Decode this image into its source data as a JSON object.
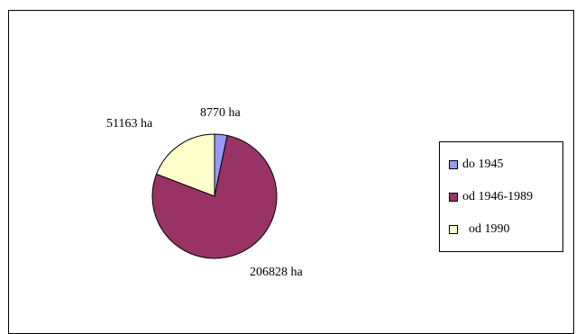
{
  "chart_data": {
    "type": "pie",
    "title": "",
    "categories": [
      "do 1945",
      "od 1946-1989",
      "od 1990"
    ],
    "values": [
      8770,
      206828,
      51163
    ],
    "data_labels": [
      "8770 ha",
      "206828 ha",
      "51163 ha"
    ],
    "colors": [
      "#9999ff",
      "#993366",
      "#ffffcc"
    ],
    "legend_position": "right"
  }
}
